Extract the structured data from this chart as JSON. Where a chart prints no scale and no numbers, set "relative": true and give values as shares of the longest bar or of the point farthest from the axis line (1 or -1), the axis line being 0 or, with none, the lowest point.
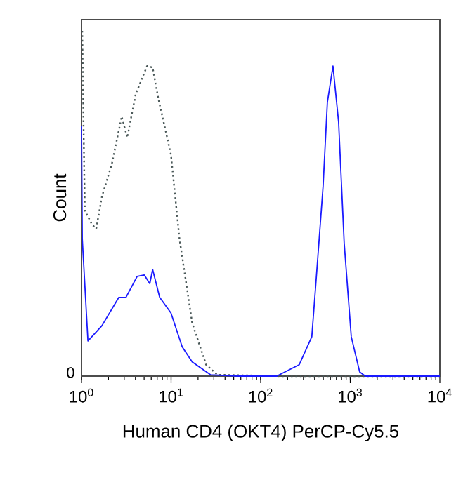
{
  "chart_data": {
    "type": "line",
    "relative": true,
    "xlabel": "Human CD4 (OKT4) PerCP-Cy5.5",
    "ylabel": "Count",
    "log": "x",
    "xlim": [
      1,
      10000
    ],
    "xticks": [
      {
        "value": 1,
        "label": "10$^{0}$"
      },
      {
        "value": 10,
        "label": "10$^{1}$"
      },
      {
        "value": 100,
        "label": "10$^{2}$"
      },
      {
        "value": 1000,
        "label": "10$^{3}$"
      },
      {
        "value": 10000,
        "label": "10$^{4}$"
      }
    ],
    "annotations": [
      "0"
    ],
    "series": [
      {
        "color": "#4a5858",
        "line_style": "dotted",
        "x": [
          1.02,
          1.06,
          1.09,
          1.31,
          1.46,
          1.69,
          2.18,
          2.81,
          3.24,
          4.03,
          5.39,
          6.22,
          7.19,
          9.96,
          12.4,
          17.2,
          24.6,
          32.8,
          168,
          10000
        ],
        "values": [
          1.0,
          0.683,
          0.48,
          0.439,
          0.427,
          0.52,
          0.614,
          0.752,
          0.691,
          0.817,
          0.898,
          0.894,
          0.805,
          0.642,
          0.398,
          0.154,
          0.033,
          0.004,
          0,
          0
        ]
      },
      {
        "color": "#1a1aff",
        "line_style": "solid",
        "x": [
          1.0,
          1.02,
          1.18,
          1.69,
          2.61,
          3.13,
          4.18,
          5.01,
          5.79,
          6.22,
          7.46,
          9.96,
          13.3,
          17.2,
          27.5,
          56.6,
          151,
          269,
          372,
          415,
          497,
          555,
          641,
          741,
          855,
          1026,
          1274,
          1472,
          10000
        ],
        "values": [
          0.724,
          0.398,
          0.102,
          0.146,
          0.228,
          0.228,
          0.289,
          0.293,
          0.268,
          0.309,
          0.228,
          0.183,
          0.085,
          0.041,
          0.004,
          0,
          0,
          0.033,
          0.114,
          0.276,
          0.549,
          0.793,
          0.898,
          0.736,
          0.386,
          0.114,
          0.012,
          0,
          0
        ]
      }
    ]
  }
}
